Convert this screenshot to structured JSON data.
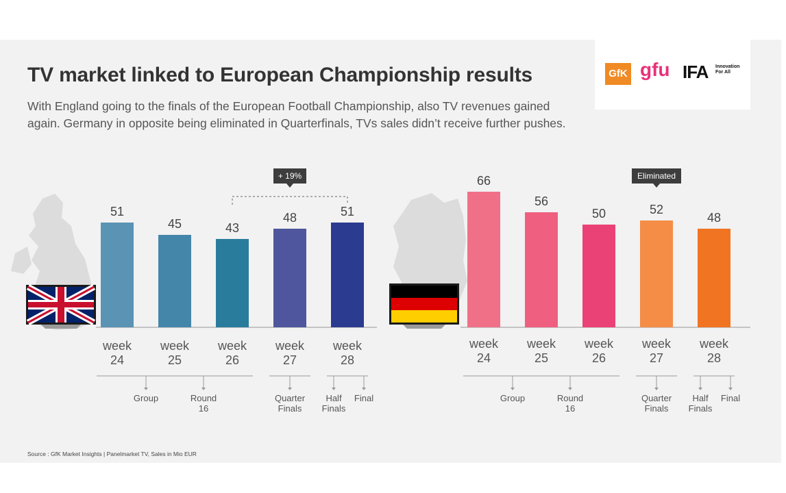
{
  "header": {
    "title": "TV market linked to European Championship results",
    "subtitle": "With England going to the finals of the European Football Championship, also TV revenues gained again. Germany in opposite being eliminated in Quarterfinals, TVs sales didn’t receive further pushes."
  },
  "logos": {
    "gfk": "GfK",
    "gfu": "gfu",
    "ifa": "IFA",
    "ifa_tagline": "Innovation For All"
  },
  "footer": {
    "source": "Source : GfK Market Insights | Panelmarket TV, Sales in Mio EUR"
  },
  "chart_data": [
    {
      "type": "bar",
      "country": "England",
      "categories": [
        "week 24",
        "week 25",
        "week 26",
        "week 27",
        "week 28"
      ],
      "values": [
        51,
        45,
        43,
        48,
        51
      ],
      "colors": [
        "#5b93b5",
        "#4486a9",
        "#2a7c9d",
        "#4f569d",
        "#2b3b8f"
      ],
      "ylim": [
        0,
        70
      ],
      "annotation": {
        "text": "+ 19%",
        "from_index": 2,
        "to_index": 4
      },
      "stages": [
        {
          "label": "Group",
          "from_index": 0,
          "to_index": 1
        },
        {
          "label": "Round 16",
          "from_index": 1,
          "to_index": 2
        },
        {
          "label": "Quarter Finals",
          "from_index": 3,
          "to_index": 3
        },
        {
          "label": "Half Finals",
          "from_index": 4,
          "to_index": 4,
          "side": "left"
        },
        {
          "label": "Final",
          "from_index": 4,
          "to_index": 4,
          "side": "right"
        }
      ]
    },
    {
      "type": "bar",
      "country": "Germany",
      "categories": [
        "week 24",
        "week 25",
        "week 26",
        "week 27",
        "week 28"
      ],
      "values": [
        66,
        56,
        50,
        52,
        48
      ],
      "colors": [
        "#f07088",
        "#ef5f80",
        "#ea4276",
        "#f58d46",
        "#f07421"
      ],
      "ylim": [
        0,
        70
      ],
      "annotation": {
        "text": "Eliminated",
        "index": 3
      },
      "stages": [
        {
          "label": "Group",
          "from_index": 0,
          "to_index": 1
        },
        {
          "label": "Round 16",
          "from_index": 1,
          "to_index": 2
        },
        {
          "label": "Quarter Finals",
          "from_index": 3,
          "to_index": 3
        },
        {
          "label": "Half Finals",
          "from_index": 4,
          "to_index": 4,
          "side": "left"
        },
        {
          "label": "Final",
          "from_index": 4,
          "to_index": 4,
          "side": "right"
        }
      ]
    }
  ]
}
